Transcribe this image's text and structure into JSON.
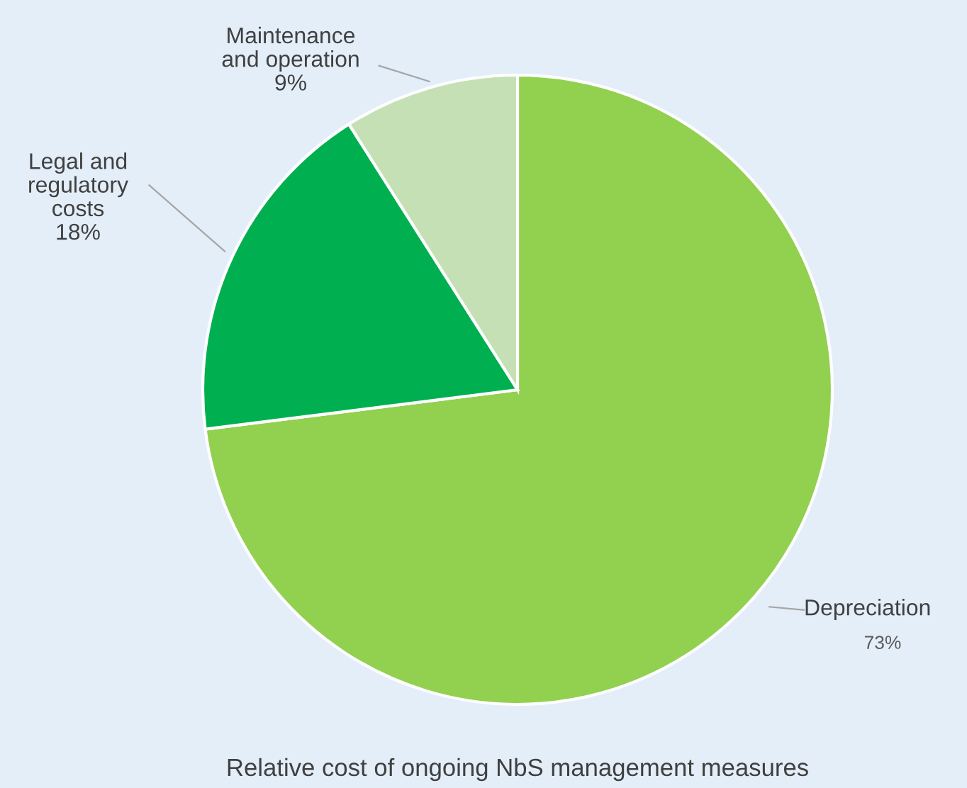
{
  "chart_data": {
    "type": "pie",
    "title": "Relative cost of ongoing NbS management measures",
    "categories": [
      "Depreciation",
      "Legal and\nregulatory\ncosts",
      "Maintenance\nand operation"
    ],
    "values": [
      73,
      18,
      9
    ],
    "colors": [
      "#92d050",
      "#00b050",
      "#c5e0b4"
    ],
    "value_labels": [
      "73%",
      "18%",
      "9%"
    ]
  }
}
